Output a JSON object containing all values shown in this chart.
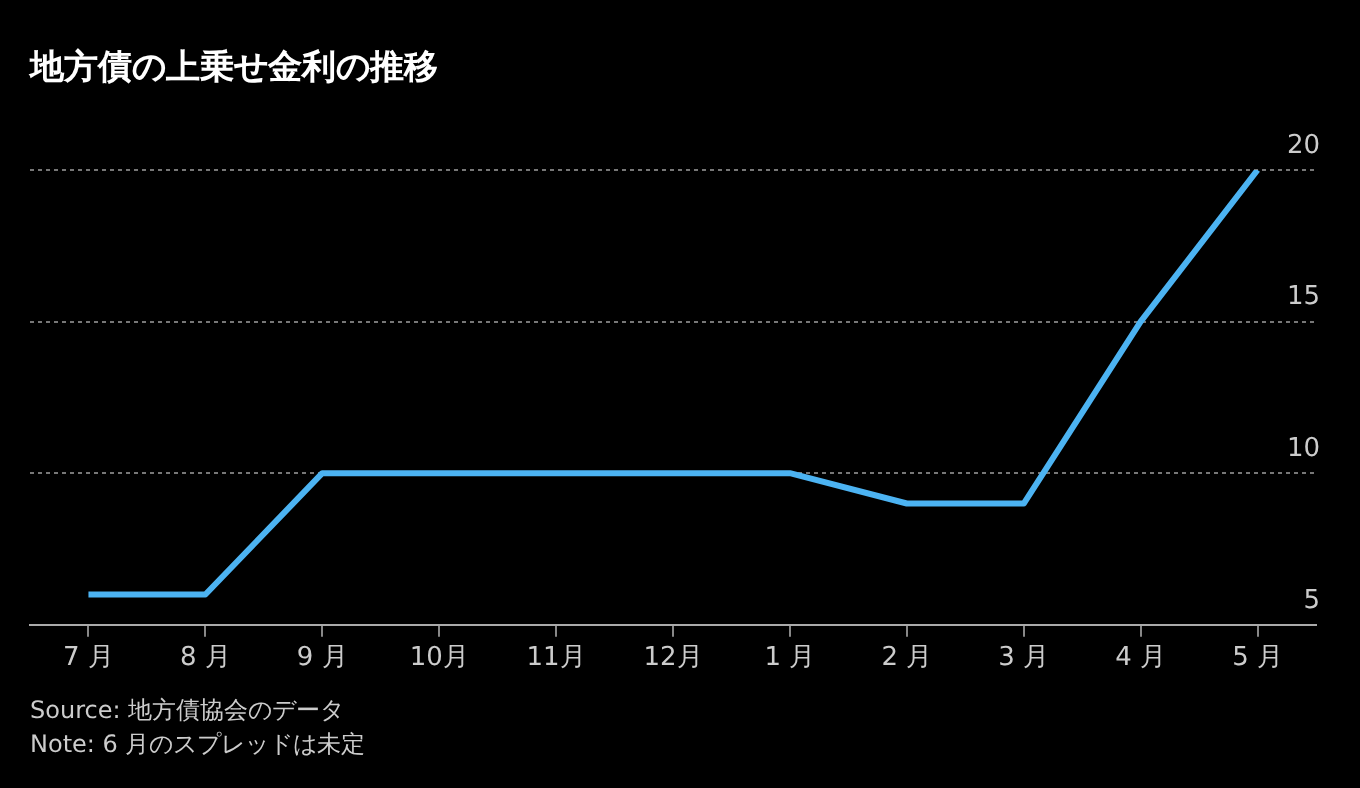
{
  "chart_data": {
    "type": "line",
    "title": "地方債の上乗せ金利の推移",
    "categories": [
      "7 月",
      "8 月",
      "9 月",
      "10月",
      "11月",
      "12月",
      "1 月",
      "2 月",
      "3 月",
      "4 月",
      "5 月"
    ],
    "series": [
      {
        "color": "#4cb3f2",
        "values": [
          6,
          6,
          10,
          10,
          10,
          10,
          10,
          9,
          9,
          15,
          20
        ]
      }
    ],
    "ylim": [
      5,
      20
    ],
    "yticks": [
      5,
      10,
      15,
      20
    ],
    "grid": "y",
    "legend": false,
    "marker": "none",
    "line_style": "solid",
    "annotations": [
      "Source: 地方債協会のデータ",
      "Note: 6 月のスプレッドは未定"
    ]
  }
}
